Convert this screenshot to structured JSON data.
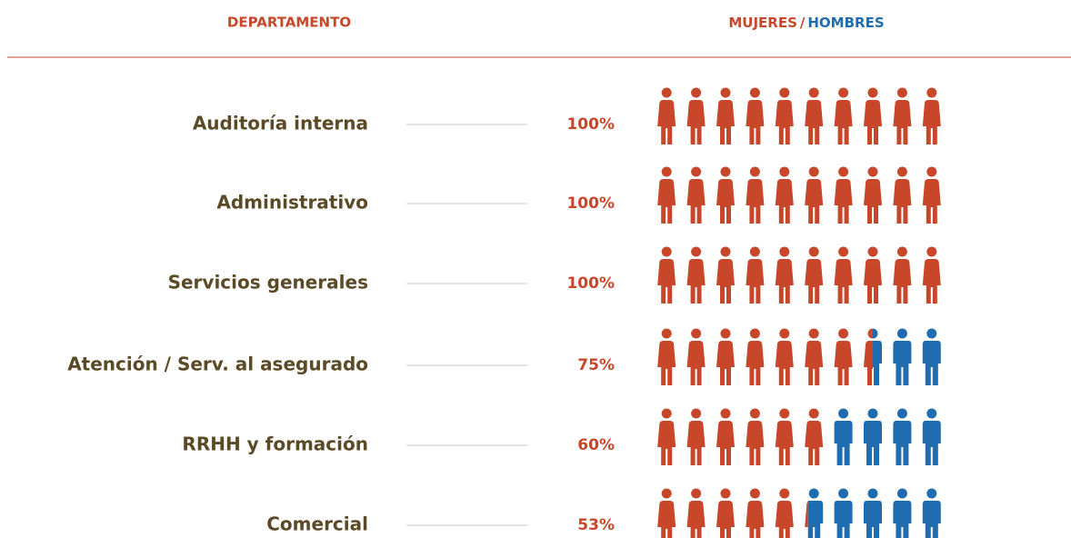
{
  "chart_data": {
    "type": "pictogram",
    "category_label": "DEPARTAMENTO",
    "legend_separator": "/",
    "categories": [
      "Auditoría interna",
      "Administrativo",
      "Servicios generales",
      "Atención / Serv. al asegurado",
      "RRHH y formación",
      "Comercial"
    ],
    "series": [
      {
        "name": "MUJERES",
        "color": "#c8472a",
        "values": [
          100,
          100,
          100,
          75,
          60,
          53
        ],
        "value_labels": [
          "100%",
          "100%",
          "100%",
          "75%",
          "60%",
          "53%"
        ]
      },
      {
        "name": "HOMBRES",
        "color": "#1f6db0"
      }
    ],
    "xlim": [
      0,
      100
    ]
  }
}
